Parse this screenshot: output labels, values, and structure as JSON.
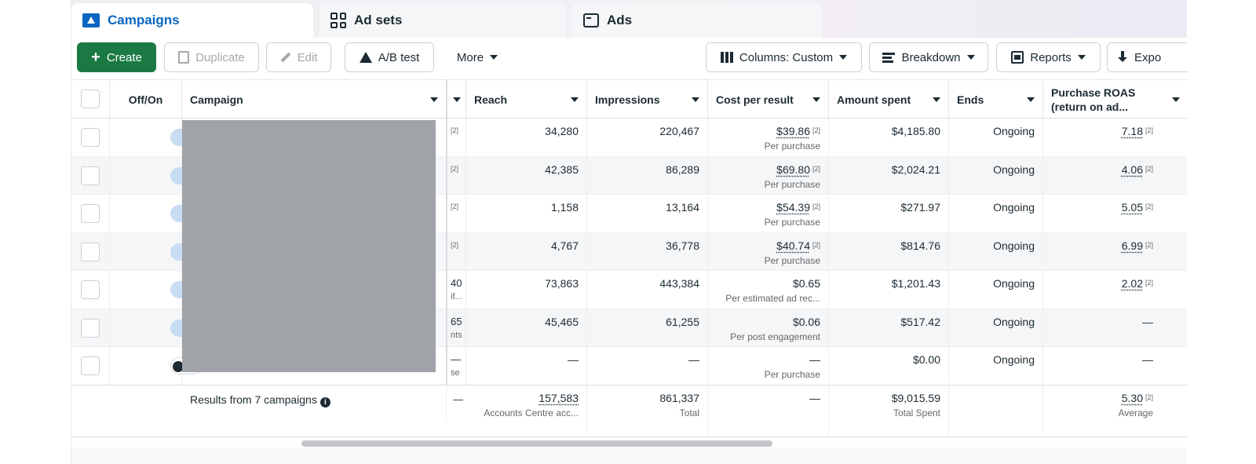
{
  "tabs": [
    {
      "label": "Campaigns",
      "icon": "campaigns-icon",
      "active": true
    },
    {
      "label": "Ad sets",
      "icon": "ad-sets-grid-icon",
      "active": false
    },
    {
      "label": "Ads",
      "icon": "ads-window-icon",
      "active": false
    }
  ],
  "toolbar": {
    "create": "Create",
    "duplicate": "Duplicate",
    "edit": "Edit",
    "ab_test": "A/B test",
    "more": "More",
    "columns": "Columns: Custom",
    "breakdown": "Breakdown",
    "reports": "Reports",
    "export": "Expo"
  },
  "columns": {
    "offon": "Off/On",
    "campaign": "Campaign",
    "reach": "Reach",
    "impressions": "Impressions",
    "cost_per_result": "Cost per result",
    "amount_spent": "Amount spent",
    "ends": "Ends",
    "roas": "Purchase ROAS (return on ad..."
  },
  "footnote": "[2]",
  "rows": [
    {
      "on": true,
      "partial": "",
      "partial_sub": "",
      "reach": "34,280",
      "impressions": "220,467",
      "cost": "$39.86",
      "cost_sub": "Per purchase",
      "cost_fn": true,
      "spent": "$4,185.80",
      "ends": "Ongoing",
      "roas": "7.18",
      "roas_fn": true
    },
    {
      "on": true,
      "partial": "",
      "partial_sub": "",
      "reach": "42,385",
      "impressions": "86,289",
      "cost": "$69.80",
      "cost_sub": "Per purchase",
      "cost_fn": true,
      "spent": "$2,024.21",
      "ends": "Ongoing",
      "roas": "4.06",
      "roas_fn": true
    },
    {
      "on": true,
      "partial": "",
      "partial_sub": "",
      "reach": "1,158",
      "impressions": "13,164",
      "cost": "$54.39",
      "cost_sub": "Per purchase",
      "cost_fn": true,
      "spent": "$271.97",
      "ends": "Ongoing",
      "roas": "5.05",
      "roas_fn": true
    },
    {
      "on": true,
      "partial": "",
      "partial_sub": "",
      "reach": "4,767",
      "impressions": "36,778",
      "cost": "$40.74",
      "cost_sub": "Per purchase",
      "cost_fn": true,
      "spent": "$814.76",
      "ends": "Ongoing",
      "roas": "6.99",
      "roas_fn": true
    },
    {
      "on": true,
      "partial": "40",
      "partial_sub": "if...",
      "reach": "73,863",
      "impressions": "443,384",
      "cost": "$0.65",
      "cost_sub": "Per estimated ad rec...",
      "cost_fn": false,
      "spent": "$1,201.43",
      "ends": "Ongoing",
      "roas": "2.02",
      "roas_fn": true
    },
    {
      "on": true,
      "partial": "65",
      "partial_sub": "nts",
      "reach": "45,465",
      "impressions": "61,255",
      "cost": "$0.06",
      "cost_sub": "Per post engagement",
      "cost_fn": false,
      "spent": "$517.42",
      "ends": "Ongoing",
      "roas": "—",
      "roas_fn": false
    },
    {
      "on": false,
      "partial": "—",
      "partial_sub": "se",
      "reach": "—",
      "impressions": "—",
      "cost": "—",
      "cost_sub": "Per purchase",
      "cost_fn": false,
      "spent": "$0.00",
      "ends": "Ongoing",
      "roas": "—",
      "roas_fn": false
    }
  ],
  "summary": {
    "label": "Results from 7 campaigns",
    "partial": "—",
    "reach": "157,583",
    "reach_sub": "Accounts Centre acc...",
    "impressions": "861,337",
    "impressions_sub": "Total",
    "cost": "—",
    "spent": "$9,015.59",
    "spent_sub": "Total Spent",
    "roas": "5.30",
    "roas_sub": "Average"
  },
  "colors": {
    "accent": "#0a66c2",
    "create": "#1b7a43",
    "redaction": "#a0a4a8"
  }
}
